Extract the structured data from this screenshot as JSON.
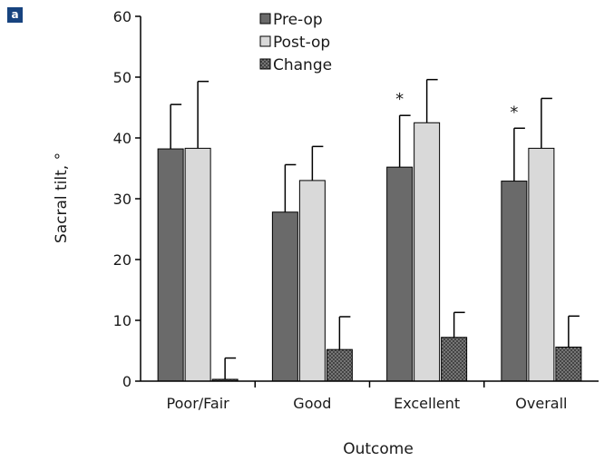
{
  "panel_label": "a",
  "chart_data": {
    "type": "bar",
    "title": "",
    "xlabel": "Outcome",
    "ylabel": "Sacral tilt, °",
    "ylim": [
      0,
      60
    ],
    "yticks": [
      0,
      10,
      20,
      30,
      40,
      50,
      60
    ],
    "categories": [
      "Poor/Fair",
      "Good",
      "Excellent",
      "Overall"
    ],
    "series": [
      {
        "name": "Pre-op",
        "color": "#6a6a6a",
        "pattern": "solid",
        "values": [
          38.2,
          27.8,
          35.2,
          32.9
        ],
        "errors": [
          7.3,
          7.8,
          8.5,
          8.7
        ]
      },
      {
        "name": "Post-op",
        "color": "#d9d9d9",
        "pattern": "solid",
        "values": [
          38.3,
          33.0,
          42.5,
          38.3
        ],
        "errors": [
          11.0,
          5.6,
          7.1,
          8.2
        ]
      },
      {
        "name": "Change",
        "color": "#6e6e6e",
        "pattern": "crosshatch",
        "values": [
          0.3,
          5.2,
          7.2,
          5.6
        ],
        "errors": [
          3.5,
          5.4,
          4.1,
          5.1
        ]
      }
    ],
    "annotations": [
      {
        "category": "Excellent",
        "text": "*"
      },
      {
        "category": "Overall",
        "text": "*"
      }
    ],
    "legend": "top-center",
    "grid": false
  }
}
